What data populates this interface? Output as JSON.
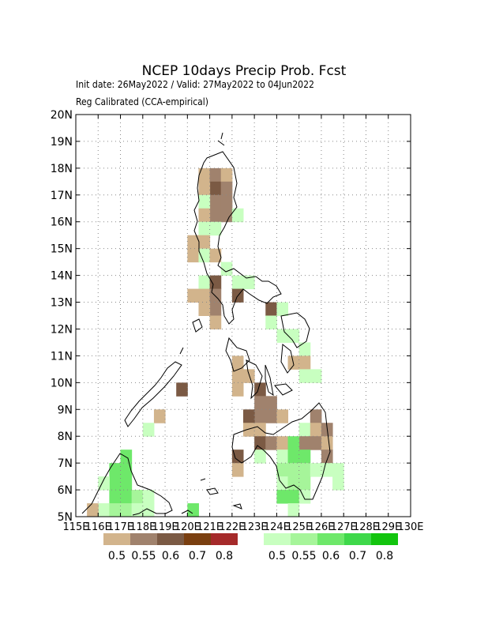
{
  "title": "NCEP 10days Precip Prob. Fcst",
  "subtitle_1": "Init date: 26May2022 / Valid: 27May2022 to 04Jun2022",
  "subtitle_2": "Reg Calibrated (CCA-empirical)",
  "y_ticks": [
    "5N",
    "6N",
    "7N",
    "8N",
    "9N",
    "10N",
    "11N",
    "12N",
    "13N",
    "14N",
    "15N",
    "16N",
    "17N",
    "18N",
    "19N",
    "20N"
  ],
  "x_ticks": [
    "115E",
    "116E",
    "117E",
    "118E",
    "119E",
    "120E",
    "121E",
    "122E",
    "123E",
    "124E",
    "125E",
    "126E",
    "127E",
    "128E",
    "129E",
    "130E"
  ],
  "legend_dry": {
    "colors": [
      "#d2b48c",
      "#a0826d",
      "#7b5a44",
      "#7a3f10",
      "#a52a2a"
    ],
    "labels": [
      "0.5",
      "0.55",
      "0.6",
      "0.7",
      "0.8"
    ]
  },
  "legend_wet": {
    "colors": [
      "#c8ffc0",
      "#a6f59a",
      "#6ee86a",
      "#3ed84a",
      "#12c40e"
    ],
    "labels": [
      "0.5",
      "0.55",
      "0.6",
      "0.7",
      "0.8"
    ]
  },
  "chart_data": {
    "type": "heatmap",
    "title": "NCEP 10days Precip Prob. Fcst",
    "xlim": [
      115,
      130
    ],
    "ylim": [
      5,
      20
    ],
    "grid": true,
    "cell_size_deg": 0.5,
    "cells": [
      {
        "lon": 120.5,
        "lat": 17.5,
        "c": "#d2b48c"
      },
      {
        "lon": 121.0,
        "lat": 17.5,
        "c": "#a0826d"
      },
      {
        "lon": 121.0,
        "lat": 17.0,
        "c": "#7b5a44"
      },
      {
        "lon": 121.5,
        "lat": 17.5,
        "c": "#d2b48c"
      },
      {
        "lon": 120.5,
        "lat": 17.0,
        "c": "#d2b48c"
      },
      {
        "lon": 121.0,
        "lat": 16.5,
        "c": "#a0826d"
      },
      {
        "lon": 121.5,
        "lat": 17.0,
        "c": "#a0826d"
      },
      {
        "lon": 120.5,
        "lat": 16.5,
        "c": "#c8ffc0"
      },
      {
        "lon": 121.5,
        "lat": 16.5,
        "c": "#a0826d"
      },
      {
        "lon": 121.0,
        "lat": 16.0,
        "c": "#a0826d"
      },
      {
        "lon": 120.5,
        "lat": 16.0,
        "c": "#d2b48c"
      },
      {
        "lon": 121.5,
        "lat": 16.0,
        "c": "#a0826d"
      },
      {
        "lon": 122.0,
        "lat": 16.0,
        "c": "#c8ffc0"
      },
      {
        "lon": 121.0,
        "lat": 15.5,
        "c": "#c8ffc0"
      },
      {
        "lon": 120.5,
        "lat": 15.5,
        "c": "#c8ffc0"
      },
      {
        "lon": 120.5,
        "lat": 15.0,
        "c": "#d2b48c"
      },
      {
        "lon": 120.0,
        "lat": 15.0,
        "c": "#d2b48c"
      },
      {
        "lon": 120.0,
        "lat": 14.5,
        "c": "#d2b48c"
      },
      {
        "lon": 120.5,
        "lat": 14.5,
        "c": "#c8ffc0"
      },
      {
        "lon": 121.0,
        "lat": 14.5,
        "c": "#d2b48c"
      },
      {
        "lon": 121.5,
        "lat": 14.0,
        "c": "#c8ffc0"
      },
      {
        "lon": 120.5,
        "lat": 13.5,
        "c": "#c8ffc0"
      },
      {
        "lon": 121.0,
        "lat": 13.5,
        "c": "#7b5a44"
      },
      {
        "lon": 122.0,
        "lat": 13.5,
        "c": "#c8ffc0"
      },
      {
        "lon": 122.5,
        "lat": 13.5,
        "c": "#c8ffc0"
      },
      {
        "lon": 120.0,
        "lat": 13.0,
        "c": "#d2b48c"
      },
      {
        "lon": 120.5,
        "lat": 13.0,
        "c": "#d2b48c"
      },
      {
        "lon": 121.0,
        "lat": 13.0,
        "c": "#a0826d"
      },
      {
        "lon": 122.0,
        "lat": 13.0,
        "c": "#7b5a44"
      },
      {
        "lon": 121.0,
        "lat": 12.5,
        "c": "#a0826d"
      },
      {
        "lon": 120.5,
        "lat": 12.5,
        "c": "#d2b48c"
      },
      {
        "lon": 121.0,
        "lat": 12.0,
        "c": "#d2b48c"
      },
      {
        "lon": 123.5,
        "lat": 12.5,
        "c": "#7b5a44"
      },
      {
        "lon": 124.0,
        "lat": 12.5,
        "c": "#c8ffc0"
      },
      {
        "lon": 123.5,
        "lat": 12.0,
        "c": "#c8ffc0"
      },
      {
        "lon": 124.0,
        "lat": 11.5,
        "c": "#c8ffc0"
      },
      {
        "lon": 124.5,
        "lat": 11.5,
        "c": "#c8ffc0"
      },
      {
        "lon": 125.0,
        "lat": 11.0,
        "c": "#c8ffc0"
      },
      {
        "lon": 122.0,
        "lat": 10.5,
        "c": "#d2b48c"
      },
      {
        "lon": 122.5,
        "lat": 10.0,
        "c": "#d2b48c"
      },
      {
        "lon": 122.0,
        "lat": 10.0,
        "c": "#d2b48c"
      },
      {
        "lon": 124.5,
        "lat": 10.5,
        "c": "#d2b48c"
      },
      {
        "lon": 125.0,
        "lat": 10.5,
        "c": "#d2b48c"
      },
      {
        "lon": 125.0,
        "lat": 10.0,
        "c": "#c8ffc0"
      },
      {
        "lon": 125.5,
        "lat": 10.0,
        "c": "#c8ffc0"
      },
      {
        "lon": 122.0,
        "lat": 9.5,
        "c": "#d2b48c"
      },
      {
        "lon": 123.0,
        "lat": 9.5,
        "c": "#7b5a44"
      },
      {
        "lon": 123.0,
        "lat": 9.0,
        "c": "#a0826d"
      },
      {
        "lon": 123.5,
        "lat": 9.0,
        "c": "#a0826d"
      },
      {
        "lon": 123.0,
        "lat": 8.5,
        "c": "#a0826d"
      },
      {
        "lon": 123.5,
        "lat": 8.5,
        "c": "#a0826d"
      },
      {
        "lon": 122.5,
        "lat": 8.5,
        "c": "#7b5a44"
      },
      {
        "lon": 122.5,
        "lat": 8.0,
        "c": "#d2b48c"
      },
      {
        "lon": 123.0,
        "lat": 8.0,
        "c": "#d2b48c"
      },
      {
        "lon": 124.0,
        "lat": 8.5,
        "c": "#d2b48c"
      },
      {
        "lon": 119.5,
        "lat": 9.5,
        "c": "#7b5a44"
      },
      {
        "lon": 118.5,
        "lat": 8.5,
        "c": "#d2b48c"
      },
      {
        "lon": 118.0,
        "lat": 8.0,
        "c": "#c8ffc0"
      },
      {
        "lon": 125.5,
        "lat": 8.5,
        "c": "#a0826d"
      },
      {
        "lon": 125.0,
        "lat": 8.0,
        "c": "#c8ffc0"
      },
      {
        "lon": 125.5,
        "lat": 8.0,
        "c": "#d2b48c"
      },
      {
        "lon": 126.0,
        "lat": 8.0,
        "c": "#a0826d"
      },
      {
        "lon": 125.0,
        "lat": 7.5,
        "c": "#a0826d"
      },
      {
        "lon": 125.5,
        "lat": 7.5,
        "c": "#a0826d"
      },
      {
        "lon": 126.0,
        "lat": 7.5,
        "c": "#d2b48c"
      },
      {
        "lon": 126.0,
        "lat": 7.0,
        "c": "#a0826d"
      },
      {
        "lon": 123.0,
        "lat": 7.5,
        "c": "#7b5a44"
      },
      {
        "lon": 123.5,
        "lat": 7.5,
        "c": "#a0826d"
      },
      {
        "lon": 124.0,
        "lat": 7.5,
        "c": "#d2b48c"
      },
      {
        "lon": 124.5,
        "lat": 7.5,
        "c": "#6ee86a"
      },
      {
        "lon": 124.0,
        "lat": 7.0,
        "c": "#c8ffc0"
      },
      {
        "lon": 123.0,
        "lat": 7.0,
        "c": "#c8ffc0"
      },
      {
        "lon": 122.0,
        "lat": 7.0,
        "c": "#7b5a44"
      },
      {
        "lon": 122.0,
        "lat": 6.5,
        "c": "#d2b48c"
      },
      {
        "lon": 124.5,
        "lat": 7.0,
        "c": "#6ee86a"
      },
      {
        "lon": 125.0,
        "lat": 7.0,
        "c": "#6ee86a"
      },
      {
        "lon": 124.0,
        "lat": 6.5,
        "c": "#a6f59a"
      },
      {
        "lon": 124.5,
        "lat": 6.5,
        "c": "#a6f59a"
      },
      {
        "lon": 125.0,
        "lat": 6.5,
        "c": "#a6f59a"
      },
      {
        "lon": 125.5,
        "lat": 6.5,
        "c": "#c8ffc0"
      },
      {
        "lon": 126.0,
        "lat": 6.5,
        "c": "#c8ffc0"
      },
      {
        "lon": 126.5,
        "lat": 6.5,
        "c": "#c8ffc0"
      },
      {
        "lon": 126.5,
        "lat": 6.0,
        "c": "#c8ffc0"
      },
      {
        "lon": 124.0,
        "lat": 6.0,
        "c": "#c8ffc0"
      },
      {
        "lon": 124.5,
        "lat": 6.0,
        "c": "#a6f59a"
      },
      {
        "lon": 125.0,
        "lat": 6.0,
        "c": "#a6f59a"
      },
      {
        "lon": 124.0,
        "lat": 5.5,
        "c": "#6ee86a"
      },
      {
        "lon": 124.5,
        "lat": 5.5,
        "c": "#6ee86a"
      },
      {
        "lon": 125.0,
        "lat": 5.5,
        "c": "#c8ffc0"
      },
      {
        "lon": 124.5,
        "lat": 5.0,
        "c": "#c8ffc0"
      },
      {
        "lon": 116.5,
        "lat": 6.5,
        "c": "#6ee86a"
      },
      {
        "lon": 117.0,
        "lat": 6.5,
        "c": "#6ee86a"
      },
      {
        "lon": 117.0,
        "lat": 7.0,
        "c": "#6ee86a"
      },
      {
        "lon": 116.5,
        "lat": 6.0,
        "c": "#6ee86a"
      },
      {
        "lon": 117.0,
        "lat": 6.0,
        "c": "#6ee86a"
      },
      {
        "lon": 116.0,
        "lat": 6.0,
        "c": "#c8ffc0"
      },
      {
        "lon": 116.5,
        "lat": 5.5,
        "c": "#6ee86a"
      },
      {
        "lon": 117.0,
        "lat": 5.5,
        "c": "#6ee86a"
      },
      {
        "lon": 117.5,
        "lat": 5.5,
        "c": "#a6f59a"
      },
      {
        "lon": 118.0,
        "lat": 5.5,
        "c": "#c8ffc0"
      },
      {
        "lon": 116.0,
        "lat": 5.0,
        "c": "#c8ffc0"
      },
      {
        "lon": 116.5,
        "lat": 5.0,
        "c": "#a6f59a"
      },
      {
        "lon": 117.0,
        "lat": 5.0,
        "c": "#a6f59a"
      },
      {
        "lon": 117.5,
        "lat": 5.0,
        "c": "#c8ffc0"
      },
      {
        "lon": 118.0,
        "lat": 5.0,
        "c": "#c8ffc0"
      },
      {
        "lon": 115.5,
        "lat": 5.0,
        "c": "#d2b48c"
      },
      {
        "lon": 120.0,
        "lat": 5.0,
        "c": "#6ee86a"
      }
    ]
  }
}
